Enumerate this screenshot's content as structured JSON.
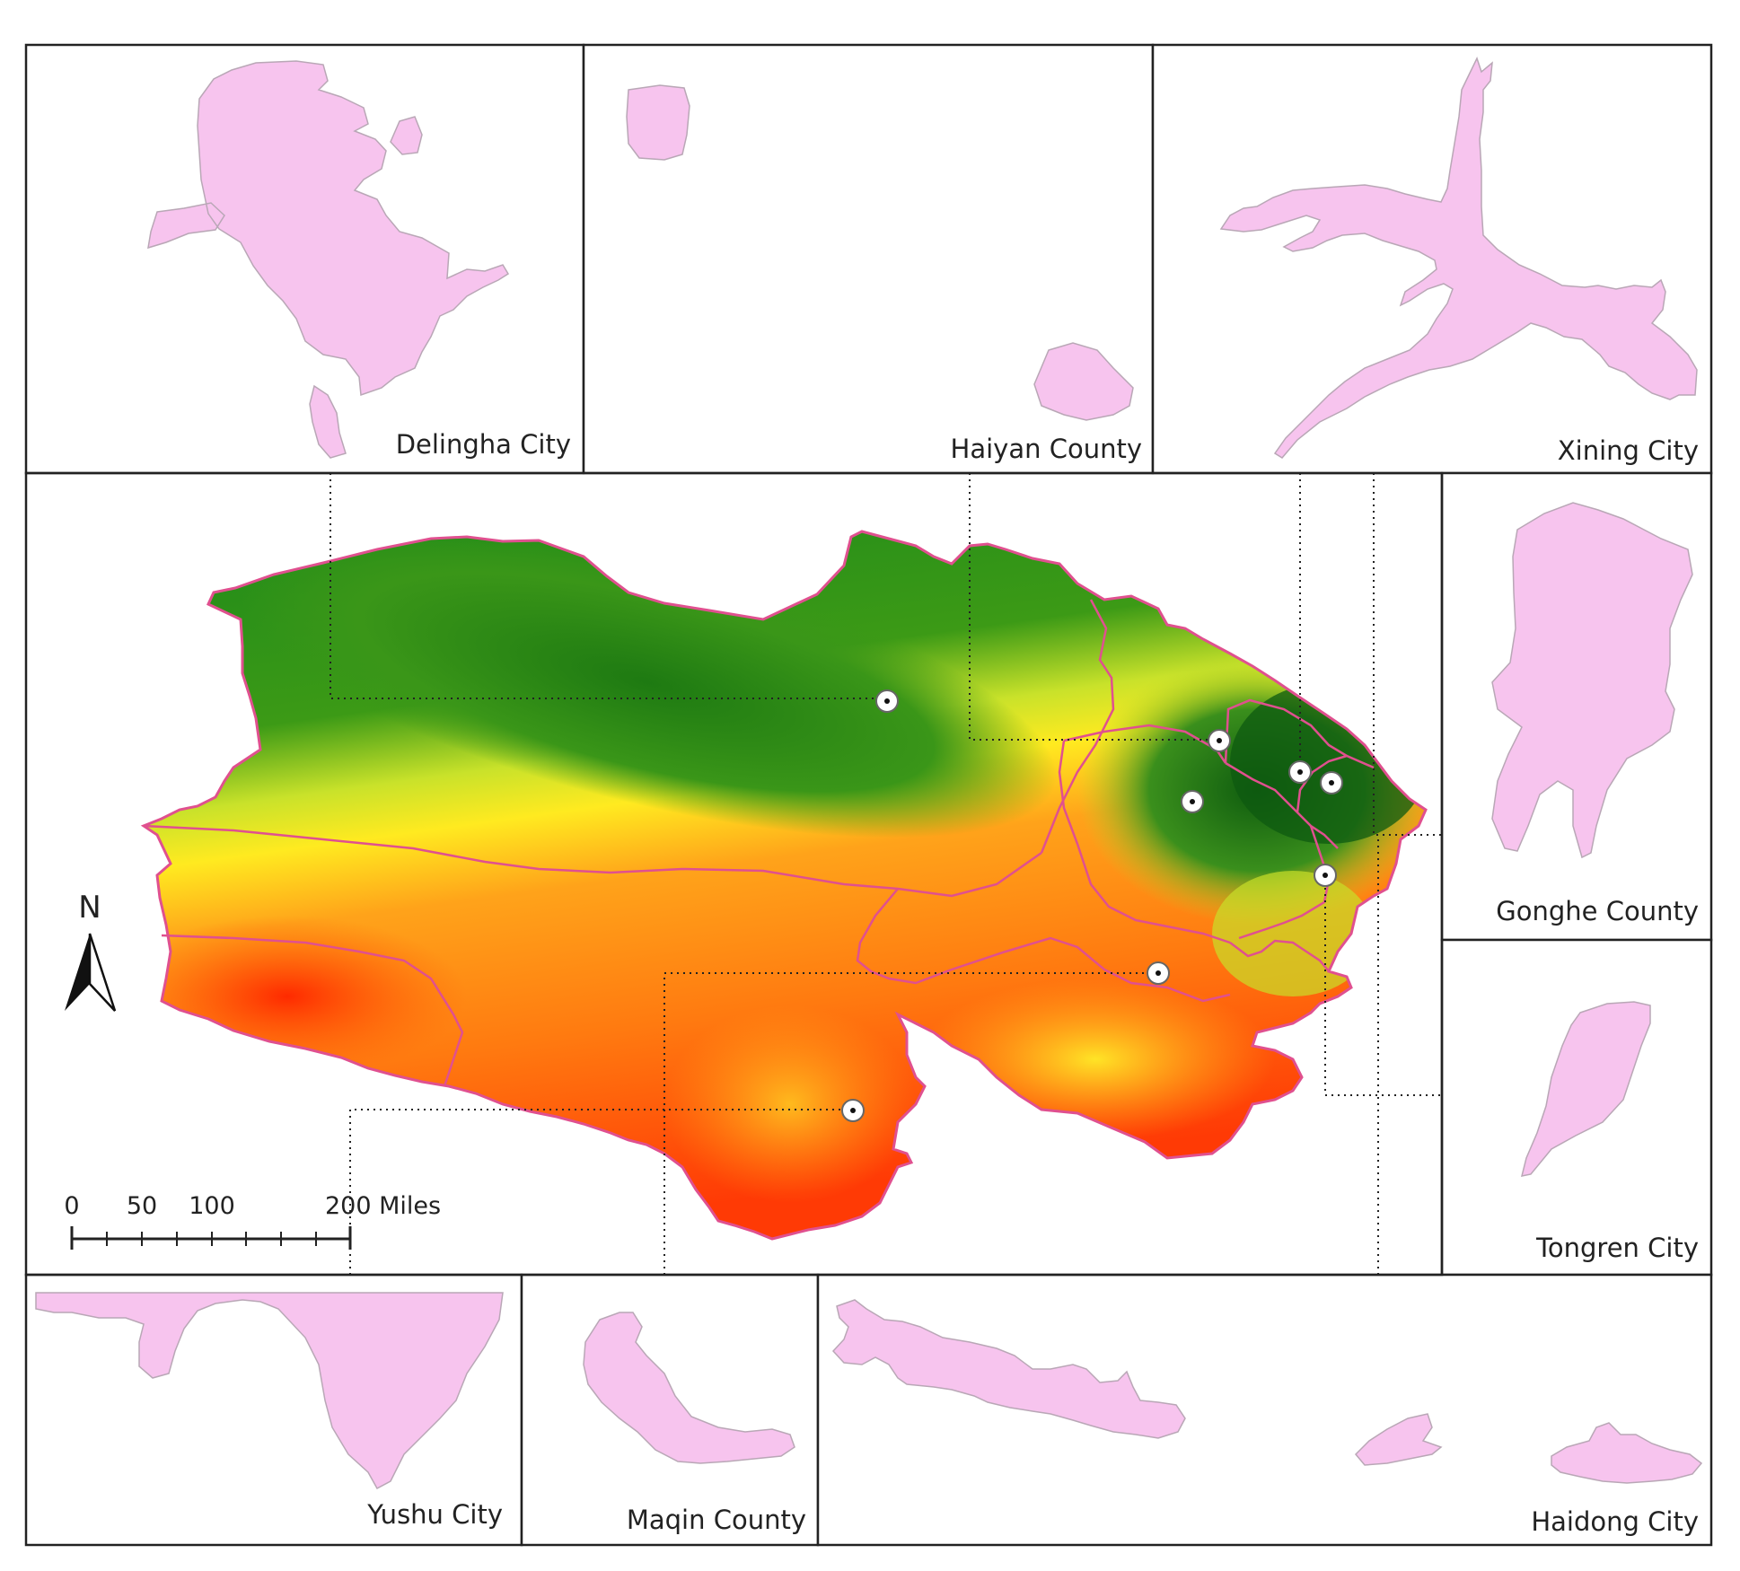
{
  "insets": {
    "delingha": "Delingha City",
    "haiyan": "Haiyan County",
    "xining": "Xining City",
    "gonghe": "Gonghe County",
    "tongren": "Tongren City",
    "yushu": "Yushu City",
    "maqin": "Maqin County",
    "haidong": "Haidong City"
  },
  "north_arrow": {
    "label": "N"
  },
  "scale_bar": {
    "ticks": [
      "0",
      "50",
      "100"
    ],
    "end_label": "200 Miles"
  },
  "colors": {
    "inset_fill": "#f7c4ee",
    "boundary": "#e0508f",
    "elevation_low": "#1f7a1f",
    "elevation_mid": "#ffff33",
    "elevation_high": "#ff2a00"
  }
}
